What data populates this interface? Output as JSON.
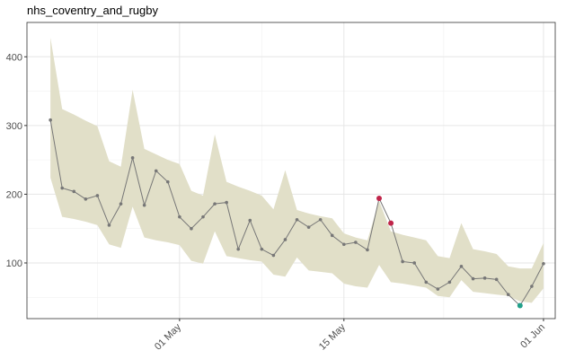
{
  "chart_data": {
    "type": "line",
    "title": "nhs_coventry_and_rugby",
    "x": [
      "04-20",
      "04-21",
      "04-22",
      "04-23",
      "04-24",
      "04-25",
      "04-26",
      "04-27",
      "04-28",
      "04-29",
      "04-30",
      "05-01",
      "05-02",
      "05-03",
      "05-04",
      "05-05",
      "05-06",
      "05-07",
      "05-08",
      "05-09",
      "05-10",
      "05-11",
      "05-12",
      "05-13",
      "05-14",
      "05-15",
      "05-16",
      "05-17",
      "05-18",
      "05-19",
      "05-20",
      "05-21",
      "05-22",
      "05-23",
      "05-24",
      "05-25",
      "05-26",
      "05-27",
      "05-28",
      "05-29",
      "05-30",
      "05-31",
      "06-01"
    ],
    "series": [
      {
        "color": "#777777",
        "values": [
          308,
          209,
          204,
          193,
          198,
          155,
          186,
          253,
          184,
          234,
          218,
          167,
          150,
          167,
          186,
          188,
          120,
          162,
          120,
          111,
          134,
          163,
          152,
          163,
          140,
          127,
          130,
          119,
          194,
          158,
          102,
          100,
          72,
          62,
          72,
          95,
          77,
          78,
          76,
          54,
          38,
          66,
          99
        ]
      },
      {
        "color": "#c0254a",
        "values": [
          null,
          null,
          null,
          null,
          null,
          null,
          null,
          null,
          null,
          null,
          null,
          null,
          null,
          null,
          null,
          null,
          null,
          null,
          null,
          null,
          null,
          null,
          null,
          null,
          null,
          null,
          null,
          null,
          194,
          158,
          null,
          null,
          null,
          null,
          null,
          null,
          null,
          null,
          null,
          null,
          null,
          null,
          null
        ]
      },
      {
        "color": "#21a08a",
        "values": [
          null,
          null,
          null,
          null,
          null,
          null,
          null,
          null,
          null,
          null,
          null,
          null,
          null,
          null,
          null,
          null,
          null,
          null,
          null,
          null,
          null,
          null,
          null,
          null,
          null,
          null,
          null,
          null,
          null,
          null,
          null,
          null,
          null,
          null,
          null,
          null,
          null,
          null,
          null,
          null,
          38,
          null,
          null
        ]
      }
    ],
    "band": {
      "color": "#e1dfc8",
      "upper": [
        428,
        324,
        316,
        307,
        299,
        248,
        240,
        352,
        266,
        258,
        250,
        244,
        205,
        198,
        287,
        218,
        211,
        205,
        198,
        178,
        235,
        177,
        172,
        168,
        165,
        143,
        137,
        133,
        190,
        146,
        141,
        137,
        133,
        110,
        107,
        158,
        120,
        117,
        113,
        95,
        92,
        92,
        129
      ],
      "lower": [
        224,
        167,
        164,
        160,
        155,
        127,
        122,
        182,
        137,
        133,
        130,
        126,
        103,
        99,
        146,
        110,
        107,
        104,
        102,
        83,
        80,
        108,
        89,
        87,
        85,
        70,
        66,
        64,
        97,
        72,
        70,
        67,
        64,
        52,
        50,
        75,
        58,
        56,
        54,
        52,
        44,
        42,
        63
      ]
    },
    "xlim": [
      "04-18",
      "06-02"
    ],
    "xticks": [
      {
        "value": "05-01",
        "label": "01 May"
      },
      {
        "value": "05-15",
        "label": "15 May"
      },
      {
        "value": "06-01",
        "label": "01 Jun"
      }
    ],
    "ylim": [
      19,
      450
    ],
    "yticks": [
      100,
      200,
      300,
      400
    ],
    "grid": true
  }
}
